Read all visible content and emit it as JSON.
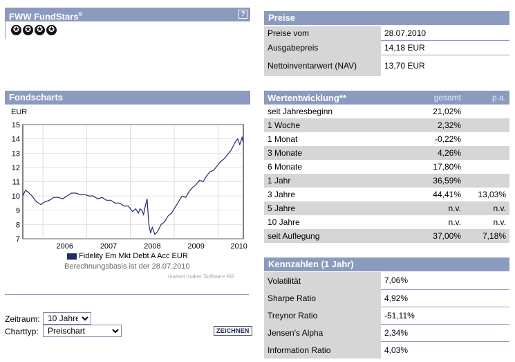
{
  "fundstars": {
    "title": "FWW FundStars",
    "reg": "®",
    "help": "?",
    "star_glyph": "✪",
    "star_count": 4
  },
  "preise": {
    "title": "Preise",
    "rows": [
      {
        "label": "Preise vom",
        "value": "28.07.2010"
      },
      {
        "label": "Ausgabepreis",
        "value": "14,18 EUR"
      },
      {
        "label": "Nettoinventarwert (NAV)",
        "value": "13,70 EUR"
      }
    ]
  },
  "fondscharts": {
    "title": "Fondscharts",
    "legend_label": "Fidelity Em Mkt Debt A Acc EUR",
    "basis": "Berechnungsbasis ist der 28.07.2010",
    "credit": "market maker Software AG"
  },
  "chart_data": {
    "type": "line",
    "ylabel": "EUR",
    "ylim": [
      7,
      15
    ],
    "yticks": [
      "15",
      "14",
      "13",
      "12",
      "11",
      "10",
      "9",
      "8",
      "7"
    ],
    "xticks": [
      "2006",
      "2007",
      "2008",
      "2009",
      "2010"
    ],
    "xlim": [
      2005.54,
      2010.58
    ],
    "series": [
      {
        "name": "Fidelity Em Mkt Debt A Acc EUR",
        "x": [
          2005.54,
          2005.6,
          2005.65,
          2005.75,
          2005.85,
          2005.95,
          2006.05,
          2006.15,
          2006.25,
          2006.35,
          2006.45,
          2006.55,
          2006.65,
          2006.75,
          2006.85,
          2006.95,
          2007.05,
          2007.15,
          2007.25,
          2007.35,
          2007.45,
          2007.55,
          2007.65,
          2007.75,
          2007.85,
          2007.95,
          2008.05,
          2008.12,
          2008.18,
          2008.22,
          2008.26,
          2008.3,
          2008.34,
          2008.38,
          2008.42,
          2008.46,
          2008.5,
          2008.56,
          2008.62,
          2008.7,
          2008.78,
          2008.86,
          2008.94,
          2009.02,
          2009.1,
          2009.18,
          2009.26,
          2009.34,
          2009.42,
          2009.5,
          2009.58,
          2009.66,
          2009.74,
          2009.82,
          2009.9,
          2009.98,
          2010.06,
          2010.14,
          2010.22,
          2010.3,
          2010.35,
          2010.4,
          2010.45,
          2010.5,
          2010.55,
          2010.58
        ],
        "y": [
          10.0,
          10.4,
          10.3,
          10.0,
          9.6,
          9.4,
          9.6,
          9.7,
          9.9,
          9.9,
          9.8,
          10.0,
          10.2,
          10.2,
          10.1,
          10.1,
          10.0,
          10.0,
          9.8,
          9.9,
          9.7,
          9.7,
          9.5,
          9.5,
          9.3,
          9.3,
          8.9,
          9.1,
          8.8,
          9.1,
          9.0,
          8.7,
          9.3,
          9.8,
          8.0,
          7.4,
          7.8,
          7.3,
          7.5,
          8.0,
          8.2,
          8.6,
          8.8,
          9.2,
          9.6,
          10.0,
          9.9,
          10.3,
          10.6,
          10.8,
          11.1,
          11.0,
          11.4,
          11.7,
          11.8,
          12.1,
          12.4,
          12.6,
          12.9,
          13.2,
          13.5,
          13.8,
          14.0,
          13.6,
          14.1,
          13.7
        ]
      }
    ]
  },
  "controls": {
    "zeitraum_label": "Zeitraum:",
    "zeitraum_value": "10 Jahre",
    "charttyp_label": "Charttyp:",
    "charttyp_value": "Preischart",
    "zeichnen_label": "ZEICHNEN"
  },
  "wertentwicklung": {
    "title": "Wertentwicklung**",
    "col_gesamt": "gesamt",
    "col_pa": "p.a.",
    "rows": [
      {
        "label": "seit Jahresbeginn",
        "gesamt": "21,02%",
        "pa": ""
      },
      {
        "label": "1 Woche",
        "gesamt": "2,32%",
        "pa": ""
      },
      {
        "label": "1 Monat",
        "gesamt": "-0,22%",
        "pa": ""
      },
      {
        "label": "3 Monate",
        "gesamt": "4,26%",
        "pa": ""
      },
      {
        "label": "6 Monate",
        "gesamt": "17,80%",
        "pa": ""
      },
      {
        "label": "1 Jahr",
        "gesamt": "36,59%",
        "pa": ""
      },
      {
        "label": "3 Jahre",
        "gesamt": "44,41%",
        "pa": "13,03%"
      },
      {
        "label": "5 Jahre",
        "gesamt": "n.v.",
        "pa": "n.v."
      },
      {
        "label": "10 Jahre",
        "gesamt": "n.v.",
        "pa": "n.v."
      },
      {
        "label": "seit Auflegung",
        "gesamt": "37,00%",
        "pa": "7,18%"
      }
    ]
  },
  "kennzahlen": {
    "title": "Kennzahlen (1 Jahr)",
    "rows": [
      {
        "label": "Volatilität",
        "value": "7,06%"
      },
      {
        "label": "Sharpe Ratio",
        "value": "4,92%"
      },
      {
        "label": "Treynor Ratio",
        "value": "-51,11%"
      },
      {
        "label": "Jensen's Alpha",
        "value": "2,34%"
      },
      {
        "label": "Information Ratio",
        "value": "4,03%"
      }
    ]
  }
}
